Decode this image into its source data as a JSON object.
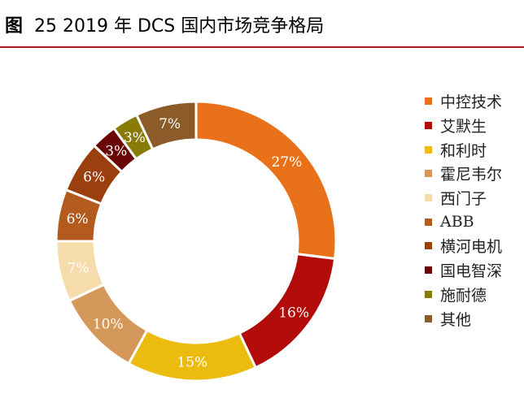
{
  "title": {
    "figure_label": "图",
    "text": "25 2019 年 DCS 国内市场竞争格局"
  },
  "chart_data": {
    "type": "pie",
    "variant": "donut",
    "title": "25 2019 年 DCS 国内市场竞争格局",
    "unit": "%",
    "legend_position": "right",
    "slices": [
      {
        "name": "中控技术",
        "value": 27,
        "label": "27%",
        "color": "#e8711a"
      },
      {
        "name": "艾默生",
        "value": 16,
        "label": "16%",
        "color": "#b30a0a"
      },
      {
        "name": "和利时",
        "value": 15,
        "label": "15%",
        "color": "#ebbc0e"
      },
      {
        "name": "霍尼韦尔",
        "value": 10,
        "label": "10%",
        "color": "#d4995a"
      },
      {
        "name": "西门子",
        "value": 7,
        "label": "7%",
        "color": "#f6dcab"
      },
      {
        "name": "ABB",
        "value": 6,
        "label": "6%",
        "color": "#b35a1f"
      },
      {
        "name": "横河电机",
        "value": 6,
        "label": "6%",
        "color": "#9a3f0d"
      },
      {
        "name": "国电智深",
        "value": 3,
        "label": "3%",
        "color": "#6b0606"
      },
      {
        "name": "施耐德",
        "value": 3,
        "label": "3%",
        "color": "#8a7a06"
      },
      {
        "name": "其他",
        "value": 7,
        "label": "7%",
        "color": "#8c5b2a"
      }
    ]
  }
}
